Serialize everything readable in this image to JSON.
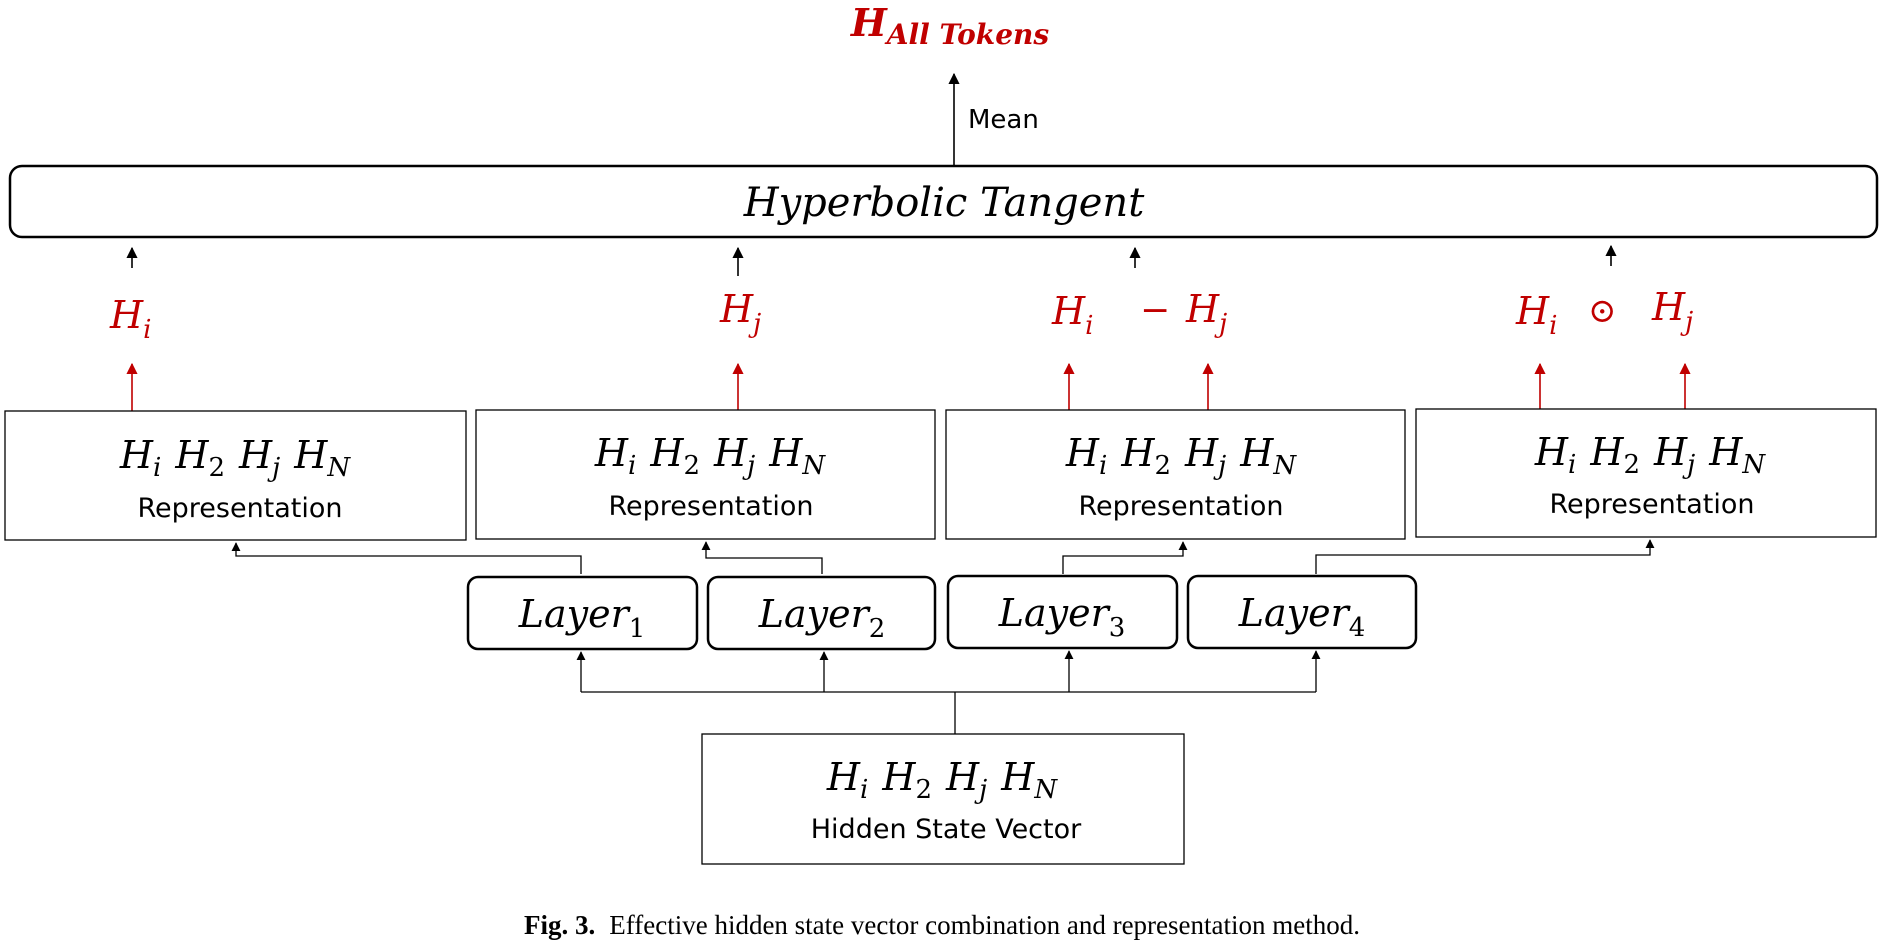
{
  "colors": {
    "accent_red": "#c00000",
    "stroke": "#000000",
    "background": "#ffffff"
  },
  "output": {
    "symbol": "H",
    "subscript": "All Tokens",
    "mean_label": "Mean"
  },
  "tanh_box": {
    "label": "Hyperbolic Tangent"
  },
  "combinations": [
    {
      "left": "H",
      "left_sub": "i",
      "op": "",
      "right": "",
      "right_sub": ""
    },
    {
      "left": "H",
      "left_sub": "j",
      "op": "",
      "right": "",
      "right_sub": ""
    },
    {
      "left": "H",
      "left_sub": "i",
      "op": "−",
      "right": "H",
      "right_sub": "j"
    },
    {
      "left": "H",
      "left_sub": "i",
      "op": "⊙",
      "right": "H",
      "right_sub": "j"
    }
  ],
  "representation": {
    "label": "Representation",
    "terms": [
      {
        "base": "H",
        "sub": "i"
      },
      {
        "base": "H",
        "sub": "2"
      },
      {
        "base": "H",
        "sub": "j"
      },
      {
        "base": "H",
        "sub": "N"
      }
    ]
  },
  "layers": [
    {
      "base": "Layer",
      "sub": "1"
    },
    {
      "base": "Layer",
      "sub": "2"
    },
    {
      "base": "Layer",
      "sub": "3"
    },
    {
      "base": "Layer",
      "sub": "4"
    }
  ],
  "hidden_state": {
    "label": "Hidden State Vector",
    "terms": [
      {
        "base": "H",
        "sub": "i"
      },
      {
        "base": "H",
        "sub": "2"
      },
      {
        "base": "H",
        "sub": "j"
      },
      {
        "base": "H",
        "sub": "N"
      }
    ]
  },
  "caption": {
    "fig_label": "Fig. 3.",
    "text": "Effective hidden state vector combination and representation method."
  }
}
